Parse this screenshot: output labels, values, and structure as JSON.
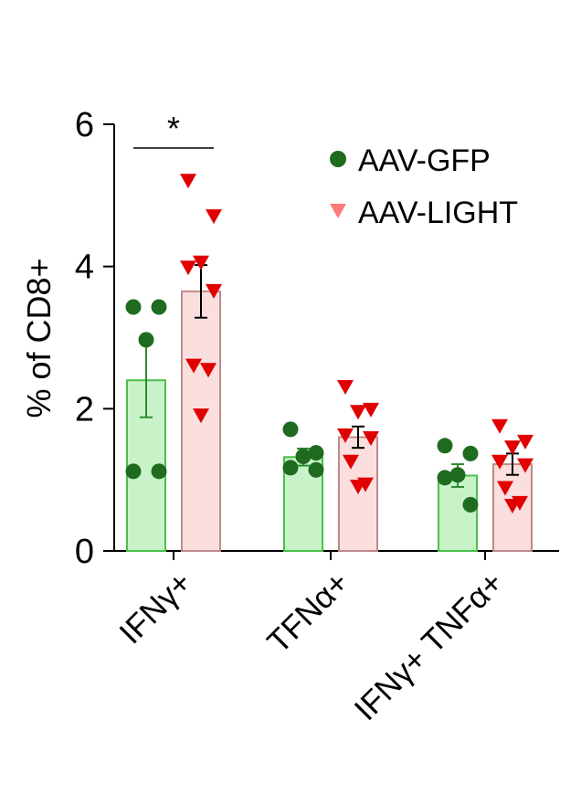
{
  "chart_data": {
    "type": "bar",
    "ylabel": "% of CD8+",
    "xlabel": "",
    "ylim": [
      0,
      6
    ],
    "yticks": [
      "0",
      "2",
      "4",
      "6"
    ],
    "categories": [
      "IFNγ+",
      "TFNα+",
      "IFNγ+ TNFα+"
    ],
    "series": [
      {
        "name": "AAV-GFP",
        "marker": "circle",
        "fill": "#c8f3c8",
        "stroke": "#4bbf4b",
        "dot_color": "#1f6b1f",
        "means": [
          2.4,
          1.32,
          1.06
        ],
        "sem": [
          0.52,
          0.12,
          0.16
        ],
        "points": [
          [
            3.43,
            3.43,
            2.97,
            1.12,
            1.12
          ],
          [
            1.71,
            1.38,
            1.33,
            1.17,
            1.14
          ],
          [
            1.48,
            1.37,
            1.07,
            1.03,
            0.65
          ]
        ]
      },
      {
        "name": "AAV-LIGHT",
        "marker": "triangle",
        "fill": "#fbdede",
        "stroke": "#c08a8a",
        "dot_color": "#e00000",
        "means": [
          3.65,
          1.6,
          1.22
        ],
        "sem": [
          0.37,
          0.15,
          0.15
        ],
        "points": [
          [
            5.2,
            4.7,
            4.05,
            3.98,
            3.65,
            2.6,
            2.54,
            1.9
          ],
          [
            2.3,
            1.98,
            1.95,
            1.62,
            1.58,
            1.25,
            0.93,
            0.9
          ],
          [
            1.75,
            1.53,
            1.45,
            1.25,
            1.2,
            0.88,
            0.67,
            0.63
          ]
        ]
      }
    ],
    "significance": [
      {
        "category": "IFNγ+",
        "label": "*"
      }
    ]
  }
}
